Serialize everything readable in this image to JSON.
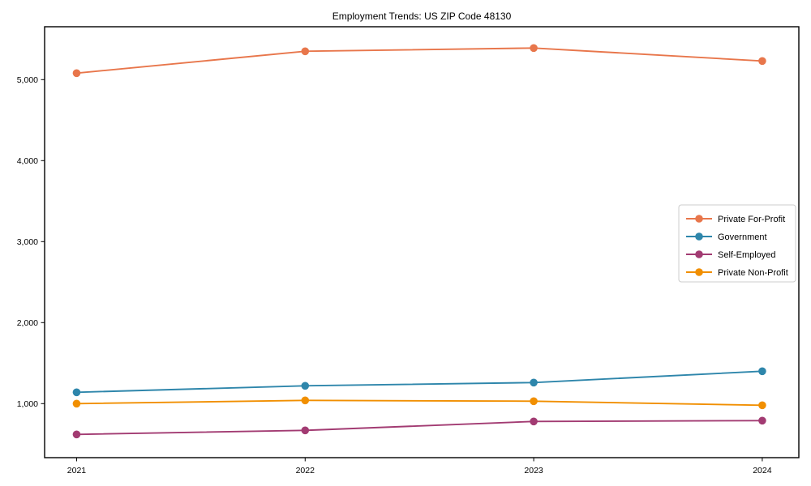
{
  "chart_data": {
    "type": "line",
    "title": "Employment Trends: US ZIP Code 48130",
    "xlabel": "",
    "ylabel": "",
    "x": [
      2021,
      2022,
      2023,
      2024
    ],
    "x_tick_labels": [
      "2021",
      "2022",
      "2023",
      "2024"
    ],
    "y_ticks": [
      1000,
      2000,
      3000,
      4000,
      5000
    ],
    "y_tick_labels": [
      "1,000",
      "2,000",
      "3,000",
      "4,000",
      "5,000"
    ],
    "xlim": [
      2020.86,
      2024.16
    ],
    "ylim": [
      333,
      5653
    ],
    "grid": false,
    "legend_position": "center right",
    "marker": "circle",
    "series": [
      {
        "name": "Private For-Profit",
        "color": "#E8764B",
        "values": [
          5080,
          5350,
          5390,
          5230
        ]
      },
      {
        "name": "Government",
        "color": "#2E86AB",
        "values": [
          1140,
          1220,
          1260,
          1400
        ]
      },
      {
        "name": "Self-Employed",
        "color": "#A23B72",
        "values": [
          620,
          670,
          780,
          790
        ]
      },
      {
        "name": "Private Non-Profit",
        "color": "#F18F01",
        "values": [
          1000,
          1040,
          1030,
          980
        ]
      }
    ],
    "frame_color": "#000000",
    "legend_border_color": "#cccccc",
    "background_color": "#ffffff"
  }
}
